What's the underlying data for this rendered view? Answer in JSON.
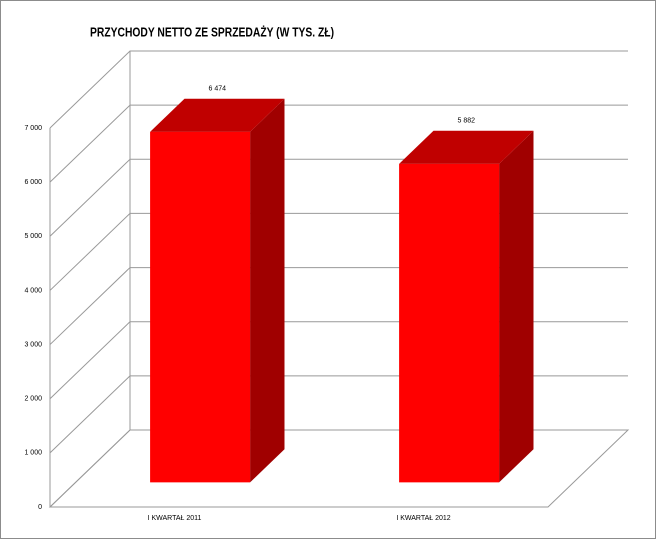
{
  "chart_data": {
    "type": "bar3d",
    "title": "PRZYCHODY NETTO ZE SPRZEDAŻY (W TYS. ZŁ)",
    "categories": [
      "I KWARTAŁ 2011",
      "I KWARTAŁ 2012"
    ],
    "values": [
      6474,
      5882
    ],
    "value_labels": [
      "6 474",
      "5 882"
    ],
    "color": "#ff0000",
    "ylim": [
      0,
      7000
    ],
    "yticks": [
      0,
      {
        "value": 1000,
        "label": "1 000"
      },
      {
        "value": 2000,
        "label": "2 000"
      },
      {
        "value": 3000,
        "label": "3 000"
      },
      {
        "value": 4000,
        "label": "4 000"
      },
      {
        "value": 5000,
        "label": "5 000"
      },
      {
        "value": 6000,
        "label": "6 000"
      },
      {
        "value": 7000,
        "label": "7 000"
      }
    ],
    "grid": true
  }
}
